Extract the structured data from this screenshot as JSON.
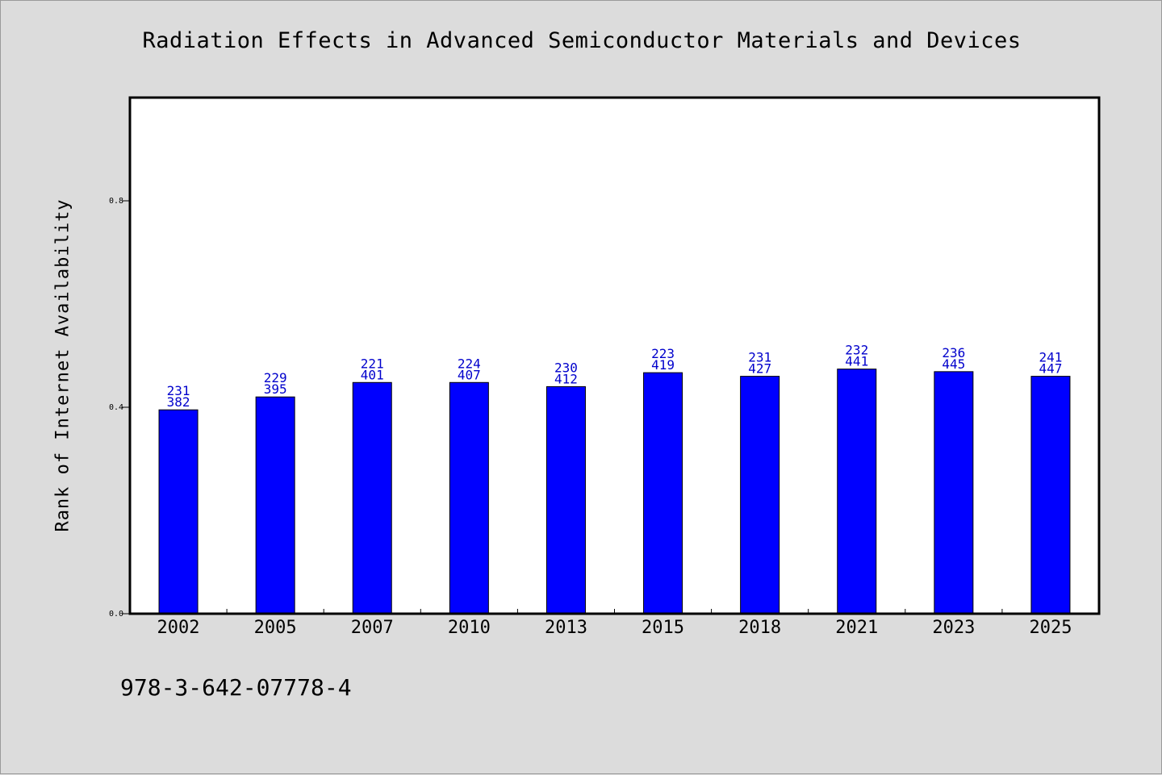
{
  "chart_data": {
    "type": "bar",
    "title": "Radiation Effects in Advanced Semiconductor Materials and Devices",
    "xlabel": "",
    "ylabel": "Rank of Internet Availability",
    "categories": [
      "2002",
      "2005",
      "2007",
      "2010",
      "2013",
      "2015",
      "2018",
      "2021",
      "2023",
      "2025"
    ],
    "values": [
      0.395,
      0.42,
      0.448,
      0.448,
      0.44,
      0.467,
      0.46,
      0.474,
      0.469,
      0.46
    ],
    "labels_top": [
      "231",
      "229",
      "221",
      "224",
      "230",
      "223",
      "231",
      "232",
      "236",
      "241"
    ],
    "labels_bottom": [
      "382",
      "395",
      "401",
      "407",
      "412",
      "419",
      "427",
      "441",
      "445",
      "447"
    ],
    "ylim": [
      0,
      1.0
    ],
    "yticks": [
      0.0,
      0.4,
      0.8
    ],
    "ytick_labels": [
      "0.0",
      "0.4",
      "0.8"
    ],
    "bar_color": "#0000ff",
    "label_color": "#0000cc",
    "grid": false,
    "legend": "none"
  },
  "footer": {
    "isbn": "978-3-642-07778-4"
  }
}
